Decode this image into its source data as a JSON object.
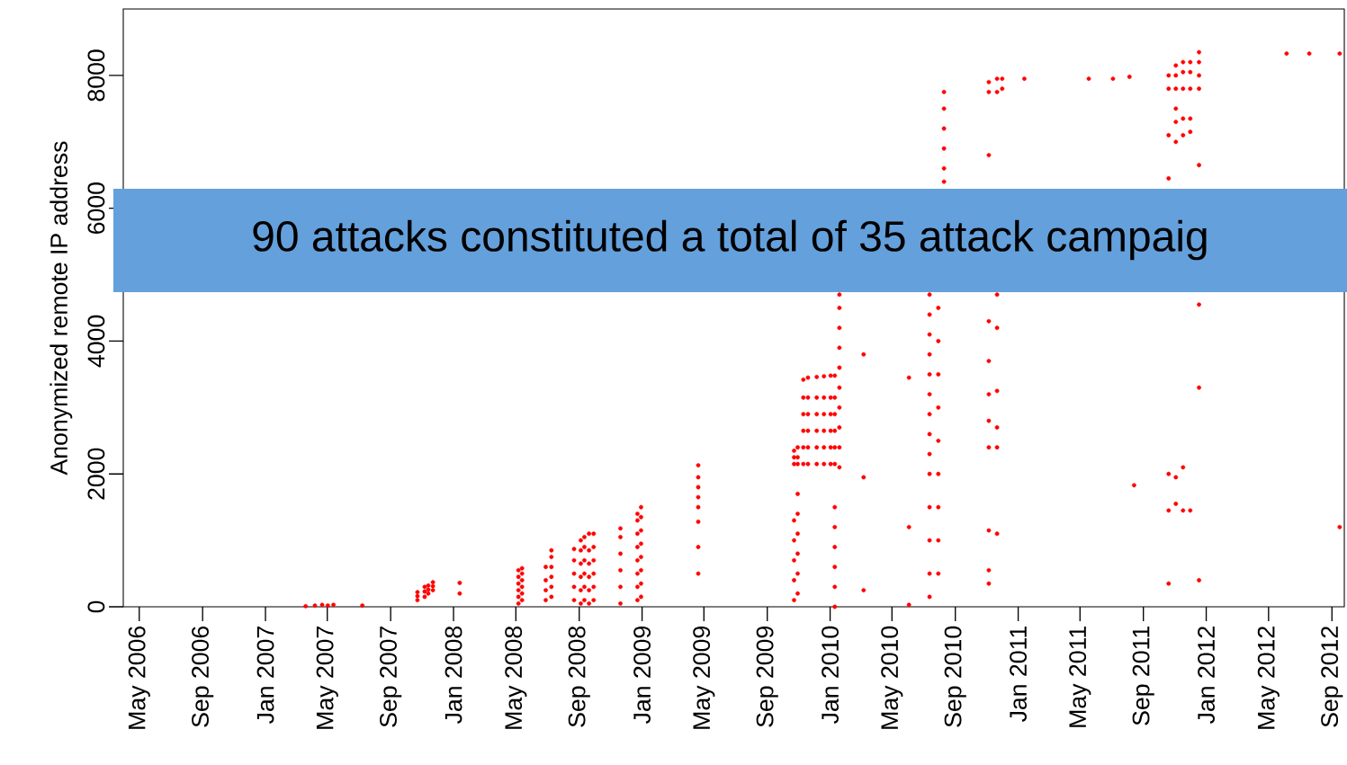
{
  "chart_data": {
    "type": "scatter",
    "ylabel": "Anonymized remote IP address",
    "annotations": [
      "90 attacks constituted a total of 35 attack campaig"
    ],
    "xlim": [
      "2006-03-31",
      "2012-09-25"
    ],
    "ylim": [
      0,
      9000
    ],
    "yticks": [
      0,
      2000,
      4000,
      6000,
      8000
    ],
    "xticks": [
      {
        "value": "2006-05-01",
        "label": "May 2006"
      },
      {
        "value": "2006-09-01",
        "label": "Sep 2006"
      },
      {
        "value": "2007-01-01",
        "label": "Jan 2007"
      },
      {
        "value": "2007-05-01",
        "label": "May 2007"
      },
      {
        "value": "2007-09-01",
        "label": "Sep 2007"
      },
      {
        "value": "2008-01-01",
        "label": "Jan 2008"
      },
      {
        "value": "2008-05-01",
        "label": "May 2008"
      },
      {
        "value": "2008-09-01",
        "label": "Sep 2008"
      },
      {
        "value": "2009-01-01",
        "label": "Jan 2009"
      },
      {
        "value": "2009-05-01",
        "label": "May 2009"
      },
      {
        "value": "2009-09-01",
        "label": "Sep 2009"
      },
      {
        "value": "2010-01-01",
        "label": "Jan 2010"
      },
      {
        "value": "2010-05-01",
        "label": "May 2010"
      },
      {
        "value": "2010-09-01",
        "label": "Sep 2010"
      },
      {
        "value": "2011-01-01",
        "label": "Jan 2011"
      },
      {
        "value": "2011-05-01",
        "label": "May 2011"
      },
      {
        "value": "2011-09-01",
        "label": "Sep 2011"
      },
      {
        "value": "2012-01-01",
        "label": "Jan 2012"
      },
      {
        "value": "2012-05-01",
        "label": "May 2012"
      },
      {
        "value": "2012-09-01",
        "label": "Sep 2012"
      }
    ],
    "color": "#ff0000",
    "x": [
      "2007-03-20",
      "2007-04-07",
      "2007-04-21",
      "2007-05-02",
      "2007-05-13",
      "2007-07-08",
      "2007-10-23",
      "2007-10-23",
      "2007-10-23",
      "2007-11-06",
      "2007-11-06",
      "2007-11-06",
      "2007-11-13",
      "2007-11-13",
      "2007-11-13",
      "2007-11-22",
      "2007-11-22",
      "2007-11-22",
      "2008-01-13",
      "2008-01-13",
      "2008-05-06",
      "2008-05-06",
      "2008-05-06",
      "2008-05-06",
      "2008-05-06",
      "2008-05-06",
      "2008-05-13",
      "2008-05-13",
      "2008-05-13",
      "2008-05-13",
      "2008-05-13",
      "2008-05-13",
      "2008-06-28",
      "2008-06-28",
      "2008-06-28",
      "2008-06-28",
      "2008-07-09",
      "2008-07-09",
      "2008-07-09",
      "2008-07-09",
      "2008-07-09",
      "2008-07-09",
      "2008-08-22",
      "2008-08-22",
      "2008-08-22",
      "2008-08-22",
      "2008-08-22",
      "2008-09-04",
      "2008-09-04",
      "2008-09-04",
      "2008-09-04",
      "2008-09-04",
      "2008-09-04",
      "2008-09-11",
      "2008-09-11",
      "2008-09-11",
      "2008-09-11",
      "2008-09-11",
      "2008-09-11",
      "2008-09-20",
      "2008-09-20",
      "2008-09-20",
      "2008-09-20",
      "2008-09-20",
      "2008-09-20",
      "2008-09-29",
      "2008-09-29",
      "2008-09-29",
      "2008-09-29",
      "2008-09-29",
      "2008-09-29",
      "2008-11-20",
      "2008-11-20",
      "2008-11-20",
      "2008-11-20",
      "2008-11-20",
      "2008-11-20",
      "2008-12-23",
      "2008-12-23",
      "2008-12-23",
      "2008-12-23",
      "2008-12-23",
      "2008-12-23",
      "2008-12-23",
      "2008-12-23",
      "2008-12-30",
      "2008-12-30",
      "2008-12-30",
      "2008-12-30",
      "2008-12-30",
      "2008-12-30",
      "2008-12-30",
      "2008-12-30",
      "2009-04-20",
      "2009-04-20",
      "2009-04-20",
      "2009-04-20",
      "2009-04-20",
      "2009-04-20",
      "2009-04-20",
      "2009-04-20",
      "2009-10-23",
      "2009-10-23",
      "2009-10-23",
      "2009-10-23",
      "2009-10-23",
      "2009-10-23",
      "2009-10-23",
      "2009-10-23",
      "2009-10-30",
      "2009-10-30",
      "2009-10-30",
      "2009-10-30",
      "2009-10-30",
      "2009-10-30",
      "2009-10-30",
      "2009-10-30",
      "2009-10-30",
      "2009-11-10",
      "2009-11-10",
      "2009-11-10",
      "2009-11-10",
      "2009-11-10",
      "2009-11-10",
      "2009-11-19",
      "2009-11-19",
      "2009-11-19",
      "2009-11-19",
      "2009-11-19",
      "2009-11-19",
      "2009-12-06",
      "2009-12-06",
      "2009-12-06",
      "2009-12-06",
      "2009-12-06",
      "2009-12-06",
      "2009-12-20",
      "2009-12-20",
      "2009-12-20",
      "2009-12-20",
      "2009-12-20",
      "2009-12-20",
      "2010-01-02",
      "2010-01-02",
      "2010-01-02",
      "2010-01-02",
      "2010-01-02",
      "2010-01-02",
      "2010-01-10",
      "2010-01-10",
      "2010-01-10",
      "2010-01-10",
      "2010-01-10",
      "2010-01-10",
      "2010-01-10",
      "2010-01-10",
      "2010-01-10",
      "2010-01-10",
      "2010-01-10",
      "2010-01-10",
      "2010-01-19",
      "2010-01-19",
      "2010-01-19",
      "2010-01-19",
      "2010-01-19",
      "2010-01-19",
      "2010-01-19",
      "2010-01-19",
      "2010-01-19",
      "2010-01-19",
      "2010-03-07",
      "2010-03-07",
      "2010-03-07",
      "2010-06-03",
      "2010-06-03",
      "2010-06-03",
      "2010-07-13",
      "2010-07-13",
      "2010-07-13",
      "2010-07-13",
      "2010-07-13",
      "2010-07-13",
      "2010-07-13",
      "2010-07-13",
      "2010-07-13",
      "2010-07-13",
      "2010-07-13",
      "2010-07-13",
      "2010-07-13",
      "2010-07-13",
      "2010-07-30",
      "2010-07-30",
      "2010-07-30",
      "2010-07-30",
      "2010-07-30",
      "2010-07-30",
      "2010-07-30",
      "2010-07-30",
      "2010-07-30",
      "2010-08-10",
      "2010-08-10",
      "2010-08-10",
      "2010-08-10",
      "2010-08-10",
      "2010-08-10",
      "2010-11-05",
      "2010-11-05",
      "2010-11-05",
      "2010-11-05",
      "2010-11-05",
      "2010-11-05",
      "2010-11-05",
      "2010-11-05",
      "2010-11-05",
      "2010-11-05",
      "2010-11-05",
      "2010-11-21",
      "2010-11-21",
      "2010-11-21",
      "2010-11-21",
      "2010-11-21",
      "2010-11-21",
      "2010-11-21",
      "2010-11-21",
      "2010-12-01",
      "2010-12-01",
      "2011-01-13",
      "2011-05-18",
      "2011-07-04",
      "2011-08-05",
      "2011-08-14",
      "2011-10-20",
      "2011-10-20",
      "2011-10-20",
      "2011-10-20",
      "2011-10-20",
      "2011-10-20",
      "2011-10-20",
      "2011-11-03",
      "2011-11-03",
      "2011-11-03",
      "2011-11-03",
      "2011-11-03",
      "2011-11-03",
      "2011-11-03",
      "2011-11-03",
      "2011-11-17",
      "2011-11-17",
      "2011-11-17",
      "2011-11-17",
      "2011-11-17",
      "2011-11-17",
      "2011-11-17",
      "2011-12-01",
      "2011-12-01",
      "2011-12-01",
      "2011-12-01",
      "2011-12-01",
      "2011-12-01",
      "2011-12-18",
      "2011-12-18",
      "2011-12-18",
      "2011-12-18",
      "2011-12-18",
      "2011-12-18",
      "2011-12-18",
      "2011-12-18",
      "2012-06-05",
      "2012-07-19",
      "2012-09-16",
      "2012-09-16"
    ],
    "values": [
      10,
      20,
      30,
      20,
      30,
      20,
      100,
      160,
      220,
      150,
      230,
      300,
      200,
      260,
      320,
      250,
      310,
      370,
      200,
      360,
      50,
      150,
      250,
      350,
      450,
      550,
      100,
      200,
      300,
      400,
      500,
      580,
      100,
      250,
      400,
      600,
      150,
      300,
      450,
      600,
      750,
      850,
      100,
      300,
      500,
      700,
      870,
      50,
      250,
      450,
      650,
      850,
      1000,
      100,
      300,
      500,
      700,
      900,
      1050,
      50,
      250,
      450,
      650,
      850,
      1100,
      100,
      300,
      500,
      700,
      900,
      1100,
      50,
      300,
      550,
      800,
      1050,
      1180,
      100,
      300,
      500,
      700,
      900,
      1100,
      1300,
      1400,
      150,
      350,
      550,
      750,
      950,
      1150,
      1350,
      1500,
      500,
      900,
      1280,
      1500,
      1650,
      1800,
      1950,
      2130,
      100,
      400,
      700,
      1000,
      1300,
      2150,
      2250,
      2350,
      200,
      500,
      800,
      1100,
      1400,
      1700,
      2150,
      2250,
      2400,
      2150,
      2400,
      2650,
      2900,
      3150,
      3420,
      2150,
      2400,
      2650,
      2900,
      3150,
      3450,
      2150,
      2400,
      2650,
      2900,
      3150,
      3460,
      2150,
      2400,
      2650,
      2900,
      3150,
      3470,
      2150,
      2400,
      2650,
      2900,
      3150,
      3480,
      0,
      300,
      600,
      900,
      1200,
      1500,
      2150,
      2400,
      2650,
      2900,
      3150,
      3480,
      2100,
      2400,
      2700,
      3000,
      3300,
      3600,
      3900,
      4200,
      4500,
      4700,
      250,
      1950,
      3800,
      30,
      1200,
      3450,
      150,
      500,
      1000,
      1500,
      2000,
      2300,
      2600,
      2900,
      3200,
      3500,
      3800,
      4100,
      4400,
      4700,
      500,
      1000,
      1500,
      2000,
      2500,
      3000,
      3500,
      4000,
      4500,
      6400,
      6600,
      6900,
      7200,
      7500,
      7750,
      350,
      550,
      1150,
      2400,
      2800,
      3200,
      3700,
      4300,
      6800,
      7750,
      7900,
      1100,
      2400,
      2700,
      3250,
      4200,
      4700,
      7750,
      7950,
      7800,
      7950,
      7950,
      7950,
      7950,
      7980,
      1830,
      350,
      1450,
      2000,
      6450,
      7100,
      7800,
      8000,
      1550,
      1950,
      7000,
      7300,
      7500,
      7800,
      8000,
      8150,
      1450,
      2100,
      7100,
      7350,
      7800,
      8050,
      8200,
      1450,
      7150,
      7350,
      7800,
      8050,
      8200,
      400,
      3300,
      4550,
      6650,
      7800,
      8000,
      8200,
      8350,
      8330,
      8330,
      1200,
      8330
    ]
  }
}
